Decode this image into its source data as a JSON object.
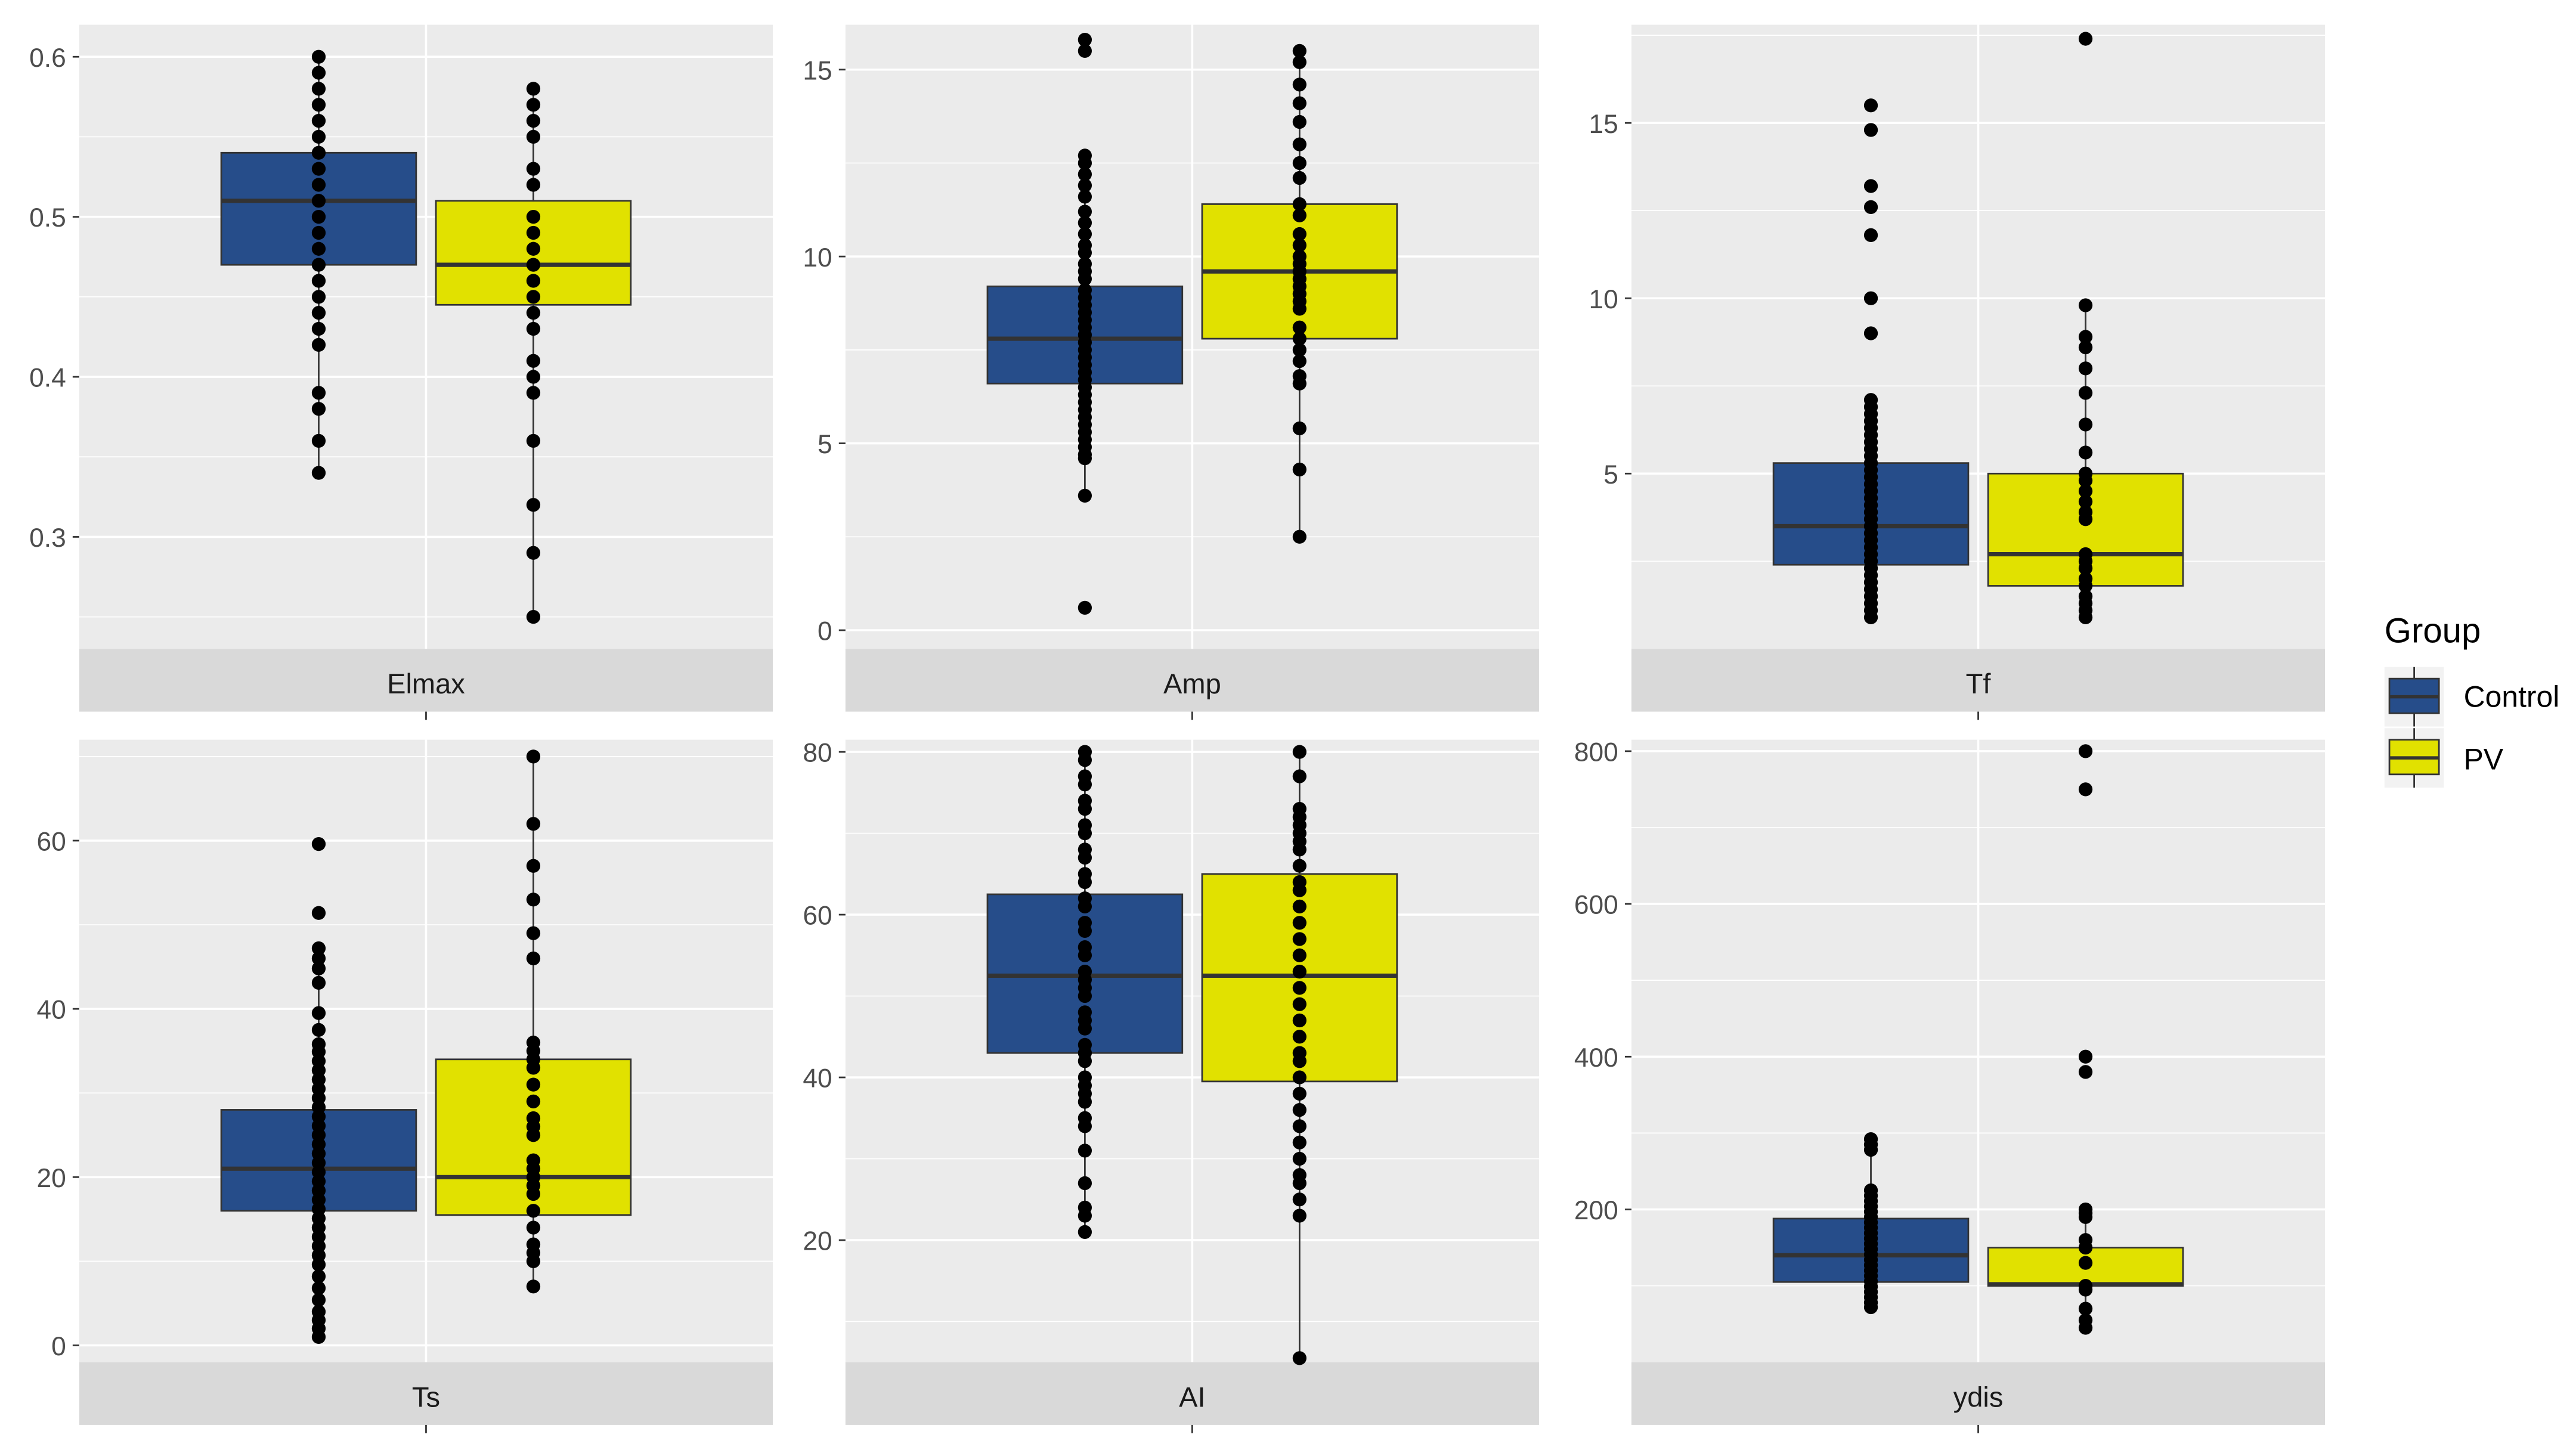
{
  "chart_data": {
    "type": "boxplot",
    "facet_strip_position": "bottom",
    "legend": {
      "title": "Group",
      "placement": "right",
      "entries": [
        {
          "name": "Control",
          "color": "#264d8a"
        },
        {
          "name": "PV",
          "color": "#e1e100"
        }
      ]
    },
    "colors": {
      "panel_bg": "#ebebeb",
      "grid": "#ffffff",
      "strip_bg": "#d9d9d9",
      "median": "#333333",
      "point": "#000000",
      "tick_text": "#4d4d4d"
    },
    "panels": [
      {
        "label": "Elmax",
        "ylim": [
          0.23,
          0.62
        ],
        "yticks": [
          0.3,
          0.4,
          0.5,
          0.6
        ],
        "tick_labels": [
          "0.3",
          "0.4",
          "0.5",
          "0.6"
        ],
        "groups": [
          {
            "name": "Control",
            "min": 0.34,
            "q1": 0.47,
            "median": 0.51,
            "q3": 0.54,
            "max": 0.6,
            "points": [
              0.6,
              0.59,
              0.58,
              0.57,
              0.56,
              0.55,
              0.54,
              0.53,
              0.52,
              0.51,
              0.5,
              0.49,
              0.48,
              0.47,
              0.46,
              0.45,
              0.44,
              0.43,
              0.42,
              0.39,
              0.38,
              0.36,
              0.34
            ]
          },
          {
            "name": "PV",
            "min": 0.25,
            "q1": 0.445,
            "median": 0.47,
            "q3": 0.51,
            "max": 0.58,
            "points": [
              0.58,
              0.57,
              0.56,
              0.55,
              0.53,
              0.52,
              0.5,
              0.49,
              0.48,
              0.47,
              0.46,
              0.45,
              0.44,
              0.43,
              0.41,
              0.4,
              0.39,
              0.36,
              0.32,
              0.29,
              0.25
            ]
          }
        ]
      },
      {
        "label": "Amp",
        "ylim": [
          -0.5,
          16.2
        ],
        "yticks": [
          0,
          5,
          10,
          15
        ],
        "tick_labels": [
          "0",
          "5",
          "10",
          "15"
        ],
        "groups": [
          {
            "name": "Control",
            "min": 3.6,
            "q1": 6.6,
            "median": 7.8,
            "q3": 9.2,
            "max": 12.8,
            "points": [
              15.8,
              15.5,
              12.7,
              12.5,
              12.2,
              11.9,
              11.6,
              11.2,
              10.9,
              10.6,
              10.3,
              10.1,
              9.8,
              9.6,
              9.4,
              9.1,
              8.9,
              8.7,
              8.5,
              8.3,
              8.1,
              7.9,
              7.7,
              7.5,
              7.3,
              7.1,
              6.9,
              6.7,
              6.5,
              6.3,
              6.1,
              5.9,
              5.7,
              5.5,
              5.3,
              5.1,
              4.9,
              4.7,
              4.6,
              3.6,
              0.6
            ]
          },
          {
            "name": "PV",
            "min": 2.5,
            "q1": 7.8,
            "median": 9.6,
            "q3": 11.4,
            "max": 15.5,
            "points": [
              15.5,
              15.2,
              14.6,
              14.1,
              13.6,
              13.0,
              12.5,
              12.1,
              11.4,
              11.1,
              10.6,
              10.3,
              10.0,
              9.8,
              9.6,
              9.4,
              9.2,
              9.0,
              8.8,
              8.6,
              8.1,
              7.8,
              7.5,
              7.2,
              6.8,
              6.6,
              5.4,
              4.3,
              2.5
            ]
          }
        ]
      },
      {
        "label": "Tf",
        "ylim": [
          0.0,
          17.8
        ],
        "yticks": [
          5,
          10,
          15
        ],
        "tick_labels": [
          "5",
          "10",
          "15"
        ],
        "groups": [
          {
            "name": "Control",
            "min": 0.8,
            "q1": 2.4,
            "median": 3.5,
            "q3": 5.3,
            "max": 7.1,
            "points": [
              15.5,
              14.8,
              13.2,
              12.6,
              11.8,
              10.0,
              9.0,
              7.1,
              6.9,
              6.7,
              6.5,
              6.3,
              6.1,
              5.9,
              5.7,
              5.5,
              5.3,
              5.1,
              4.9,
              4.7,
              4.5,
              4.3,
              4.1,
              3.9,
              3.7,
              3.5,
              3.3,
              3.1,
              2.9,
              2.7,
              2.5,
              2.3,
              2.1,
              1.9,
              1.7,
              1.5,
              1.3,
              1.1,
              0.9
            ]
          },
          {
            "name": "PV",
            "min": 0.9,
            "q1": 1.8,
            "median": 2.7,
            "q3": 5.0,
            "max": 9.8,
            "points": [
              17.4,
              9.8,
              8.9,
              8.6,
              8.0,
              7.3,
              6.4,
              5.6,
              5.0,
              4.8,
              4.5,
              4.2,
              3.9,
              3.7,
              2.7,
              2.5,
              2.3,
              2.0,
              1.8,
              1.5,
              1.3,
              1.1,
              0.9
            ]
          }
        ]
      },
      {
        "label": "Ts",
        "ylim": [
          -2,
          72
        ],
        "yticks": [
          0,
          20,
          40,
          60
        ],
        "tick_labels": [
          "0",
          "20",
          "40",
          "60"
        ],
        "groups": [
          {
            "name": "Control",
            "min": 1,
            "q1": 16,
            "median": 21,
            "q3": 28,
            "max": 45,
            "points": [
              59.6,
              51.4,
              47.2,
              46.0,
              44.8,
              43.1,
              39.5,
              37.5,
              35.8,
              34.9,
              33.8,
              32.7,
              31.6,
              30.5,
              29.4,
              28.3,
              27.2,
              26.1,
              25.0,
              23.9,
              22.8,
              21.7,
              20.6,
              19.5,
              18.4,
              17.3,
              16.2,
              15.1,
              14.0,
              12.9,
              11.8,
              10.7,
              9.6,
              8.2,
              6.8,
              5.4,
              4.0,
              3.0,
              2.0,
              1.0
            ]
          },
          {
            "name": "PV",
            "min": 7,
            "q1": 15.5,
            "median": 20,
            "q3": 34,
            "max": 70,
            "points": [
              70,
              62,
              57,
              53,
              49,
              46,
              36,
              35,
              34,
              33,
              31,
              29,
              27,
              26,
              25,
              22,
              21,
              20,
              19,
              18,
              16,
              14,
              12,
              11,
              10,
              7
            ]
          }
        ]
      },
      {
        "label": "AI",
        "ylim": [
          5,
          81.5
        ],
        "yticks": [
          20,
          40,
          60,
          80
        ],
        "tick_labels": [
          "20",
          "40",
          "60",
          "80"
        ],
        "groups": [
          {
            "name": "Control",
            "min": 21,
            "q1": 43,
            "median": 52.5,
            "q3": 62.5,
            "max": 80,
            "points": [
              80,
              79,
              77,
              76,
              74,
              73,
              71,
              70,
              68,
              67,
              65,
              64,
              62,
              61,
              59,
              58,
              56,
              55,
              53,
              52,
              51,
              50,
              48,
              47,
              46,
              44,
              43,
              42,
              40,
              39,
              38,
              37,
              35,
              34,
              31,
              27,
              24,
              23,
              21
            ]
          },
          {
            "name": "PV",
            "min": 5.5,
            "q1": 39.5,
            "median": 52.5,
            "q3": 65,
            "max": 80,
            "points": [
              80,
              77,
              73,
              72,
              71,
              70,
              69,
              68,
              66,
              64,
              63,
              61,
              59,
              57,
              55,
              53,
              51,
              49,
              47,
              45,
              43,
              42,
              40,
              38,
              36,
              34,
              32,
              30,
              28,
              27,
              25,
              23,
              5.5
            ]
          }
        ]
      },
      {
        "label": "ydis",
        "ylim": [
          0,
          815
        ],
        "yticks": [
          200,
          400,
          600,
          800
        ],
        "tick_labels": [
          "200",
          "400",
          "600",
          "800"
        ],
        "groups": [
          {
            "name": "Control",
            "min": 70,
            "q1": 105,
            "median": 140,
            "q3": 188,
            "max": 290,
            "points": [
              292,
              285,
              278,
              225,
              218,
              211,
              204,
              197,
              190,
              183,
              176,
              169,
              162,
              155,
              148,
              141,
              134,
              127,
              120,
              113,
              106,
              99,
              92,
              85,
              78,
              72
            ]
          },
          {
            "name": "PV",
            "min": 45,
            "q1": 100,
            "median": 102,
            "q3": 150,
            "max": 200,
            "points": [
              800,
              750,
              400,
              380,
              200,
              195,
              190,
              160,
              150,
              130,
              100,
              95,
              70,
              55,
              45
            ]
          }
        ]
      }
    ]
  }
}
